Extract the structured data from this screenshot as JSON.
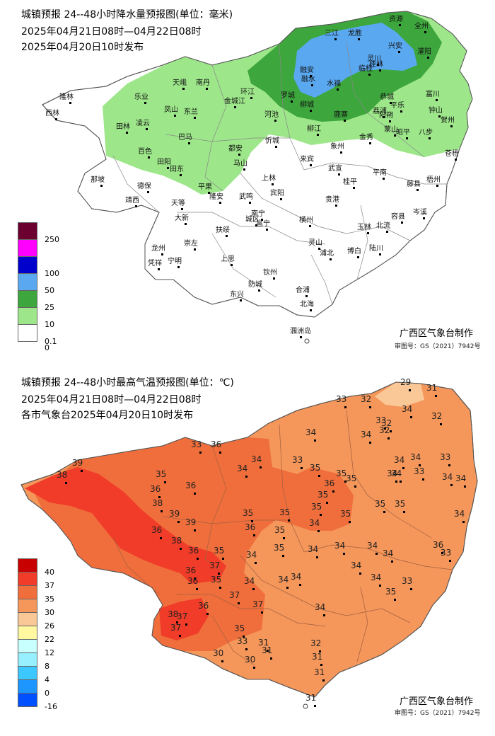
{
  "rain_panel": {
    "title": "城镇预报 24--48小时降水量预报图(单位：毫米)",
    "period": "2025年04月21日08时—04月22日08时",
    "issued": "2025年04月20日10时发布",
    "credit": "广西区气象台制作",
    "review_no": "审图号：GS（2021）7942号",
    "legend": [
      {
        "label": "250",
        "color": "#6b0030"
      },
      {
        "label": "",
        "color": "#ff00ff"
      },
      {
        "label": "100",
        "color": "#0000cc"
      },
      {
        "label": "50",
        "color": "#5aa8f0"
      },
      {
        "label": "25",
        "color": "#3da63d"
      },
      {
        "label": "10",
        "color": "#9de68a"
      },
      {
        "label": "0.1",
        "color": "#ffffff"
      },
      {
        "label": "0",
        "color": ""
      }
    ],
    "cities": [
      "资源",
      "全州",
      "三江",
      "龙胜",
      "兴安",
      "灌阳",
      "灵川",
      "临桂",
      "融水",
      "融安",
      "桂林",
      "隆林",
      "西林",
      "乐业",
      "天峨",
      "南丹",
      "环江",
      "罗城",
      "水福",
      "恭城",
      "富川",
      "金城江",
      "阳朔",
      "平乐",
      "钟山",
      "贺州",
      "凤山",
      "东兰",
      "河池",
      "柳城",
      "鹿寨",
      "荔浦",
      "田林",
      "凌云",
      "巴马",
      "忻城",
      "柳江",
      "金秀",
      "昭平",
      "八步",
      "象州",
      "蒙山",
      "苍梧",
      "百色",
      "都安",
      "来宾",
      "武宣",
      "平南",
      "藤县",
      "梧州",
      "田阳",
      "田东",
      "马山",
      "上林",
      "桂平",
      "那坡",
      "德保",
      "平果",
      "宾阳",
      "贵港",
      "靖西",
      "天等",
      "隆安",
      "武鸣",
      "容县",
      "岑溪",
      "大新",
      "南宁",
      "横州",
      "玉林",
      "北流",
      "扶绥",
      "城区",
      "邕宁",
      "龙州",
      "崇左",
      "灵山",
      "浦北",
      "博白",
      "陆川",
      "凭祥",
      "宁明",
      "上思",
      "钦州",
      "防城",
      "东兴",
      "合浦",
      "北海",
      "涠洲岛"
    ]
  },
  "temp_panel": {
    "title": "城镇预报 24--48小时最高气温预报图(单位：℃)",
    "period": "2025年04月21日08时—04月22日08时",
    "issued": "各市气象台2025年04月20日10时发布",
    "credit": "广西区气象台制作",
    "review_no": "审图号：GS（2021）7942号",
    "legend": [
      {
        "label": "40",
        "color": "#c80000"
      },
      {
        "label": "37",
        "color": "#f03c28"
      },
      {
        "label": "35",
        "color": "#f06e3c"
      },
      {
        "label": "30",
        "color": "#f5965a"
      },
      {
        "label": "26",
        "color": "#fac896"
      },
      {
        "label": "22",
        "color": "#fff8a0"
      },
      {
        "label": "12",
        "color": "#c8ffff"
      },
      {
        "label": "8",
        "color": "#96f0ff"
      },
      {
        "label": "4",
        "color": "#3cc8ff"
      },
      {
        "label": "0",
        "color": "#1e96ff"
      },
      {
        "label": "-16",
        "color": "#0050ff"
      }
    ],
    "values": [
      "29",
      "31",
      "33",
      "32",
      "34",
      "32",
      "33",
      "32",
      "34",
      "32",
      "34",
      "33",
      "34",
      "34",
      "34",
      "33",
      "36",
      "33",
      "34",
      "34",
      "33",
      "35",
      "35",
      "35",
      "36",
      "35",
      "34",
      "34",
      "35",
      "35",
      "34",
      "35",
      "35",
      "35",
      "35",
      "38",
      "39",
      "35",
      "36",
      "36",
      "38",
      "39",
      "39",
      "36",
      "34",
      "34",
      "36",
      "38",
      "36",
      "35",
      "35",
      "34",
      "34",
      "34",
      "34",
      "36",
      "37",
      "35",
      "34",
      "34",
      "36",
      "37",
      "36",
      "35",
      "34",
      "34",
      "34",
      "33",
      "33",
      "34",
      "35",
      "38",
      "37",
      "36",
      "37",
      "37",
      "35",
      "34",
      "33",
      "31",
      "31",
      "32",
      "30",
      "30",
      "31",
      "31",
      "31"
    ]
  }
}
